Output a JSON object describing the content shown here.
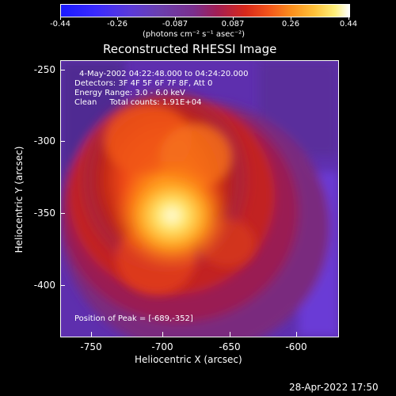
{
  "colorbar": {
    "ticks": [
      "-0.44",
      "-0.26",
      "-0.087",
      "0.087",
      "0.26",
      "0.44"
    ],
    "unit_label": "(photons cm⁻² s⁻¹ asec⁻²)"
  },
  "title": "Reconstructed RHESSI Image",
  "info_lines": [
    "4-May-2002 04:22:48.000 to 04:24:20.000",
    "Detectors: 3F 4F 5F 6F 7F 8F, Att 0",
    "Energy Range: 3.0 - 6.0 keV",
    "Clean     Total counts: 1.91E+04"
  ],
  "peak_text": "Position of Peak = [-689,-352]",
  "x_axis": {
    "label": "Heliocentric X (arcsec)",
    "ticks": [
      "-750",
      "-700",
      "-650",
      "-600"
    ]
  },
  "y_axis": {
    "label": "Heliocentric Y (arcsec)",
    "ticks": [
      "-250",
      "-300",
      "-350",
      "-400"
    ]
  },
  "timestamp": "28-Apr-2022 17:50"
}
